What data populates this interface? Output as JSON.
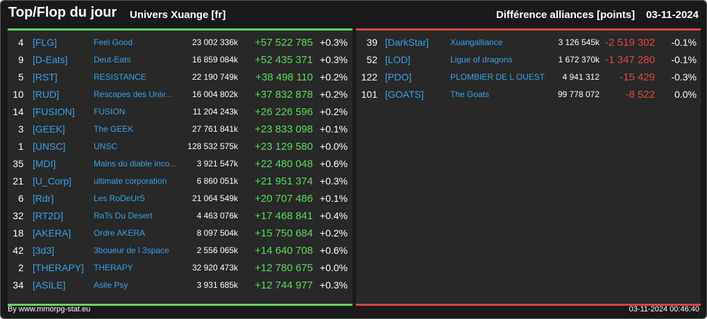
{
  "header": {
    "title": "Top/Flop du jour",
    "universe": "Univers Xuange [fr]",
    "subtitle": "Différence alliances [points]",
    "date": "03-11-2024"
  },
  "colors": {
    "positive": "#5bdc5b",
    "negative": "#e2473f",
    "tag": "#3aa2e6",
    "background": "#1a1a1a",
    "panel": "#282828"
  },
  "top": [
    {
      "rank": "4",
      "tag": "[FLG]",
      "name": "Feel Good",
      "points": "23 002 336k",
      "diff": "+57 522 785",
      "pct": "+0.3%"
    },
    {
      "rank": "9",
      "tag": "[D-Eats]",
      "name": "Deut-Eats",
      "points": "16 859 084k",
      "diff": "+52 435 371",
      "pct": "+0.3%"
    },
    {
      "rank": "5",
      "tag": "[RST]",
      "name": "RESISTANCE",
      "points": "22 190 749k",
      "diff": "+38 498 110",
      "pct": "+0.2%"
    },
    {
      "rank": "10",
      "tag": "[RUD]",
      "name": "Rescapes des Univ...",
      "points": "16 004 802k",
      "diff": "+37 832 878",
      "pct": "+0.2%"
    },
    {
      "rank": "14",
      "tag": "[FUSION]",
      "name": "FUSION",
      "points": "11 204 243k",
      "diff": "+26 226 596",
      "pct": "+0.2%"
    },
    {
      "rank": "3",
      "tag": "[GEEK]",
      "name": "The GEEK",
      "points": "27 761 841k",
      "diff": "+23 833 098",
      "pct": "+0.1%"
    },
    {
      "rank": "1",
      "tag": "[UNSC]",
      "name": "UNSC",
      "points": "128 532 575k",
      "diff": "+23 129 580",
      "pct": "+0.0%"
    },
    {
      "rank": "35",
      "tag": "[MDI]",
      "name": "Mains du diable inco...",
      "points": "3 921 547k",
      "diff": "+22 480 048",
      "pct": "+0.6%"
    },
    {
      "rank": "21",
      "tag": "[U_Corp]",
      "name": "ultimate corporation",
      "points": "6 860 051k",
      "diff": "+21 951 374",
      "pct": "+0.3%"
    },
    {
      "rank": "6",
      "tag": "[Rdr]",
      "name": "Les RoDeUrS",
      "points": "21 064 549k",
      "diff": "+20 707 486",
      "pct": "+0.1%"
    },
    {
      "rank": "32",
      "tag": "[RT2D]",
      "name": "RaTs Du Desert",
      "points": "4 463 076k",
      "diff": "+17 468 841",
      "pct": "+0.4%"
    },
    {
      "rank": "18",
      "tag": "[AKERA]",
      "name": "Ordre AKERA",
      "points": "8 097 504k",
      "diff": "+15 750 684",
      "pct": "+0.2%"
    },
    {
      "rank": "42",
      "tag": "[3d3]",
      "name": "3boueur de l 3space",
      "points": "2 556 065k",
      "diff": "+14 640 708",
      "pct": "+0.6%"
    },
    {
      "rank": "2",
      "tag": "[THERAPY]",
      "name": "THERAPY",
      "points": "32 920 473k",
      "diff": "+12 780 675",
      "pct": "+0.0%"
    },
    {
      "rank": "34",
      "tag": "[ASILE]",
      "name": "Asile Psy",
      "points": "3 931 685k",
      "diff": "+12 744 977",
      "pct": "+0.3%"
    }
  ],
  "flop": [
    {
      "rank": "39",
      "tag": "[DarkStar]",
      "name": "Xuangalliance",
      "points": "3 126 545k",
      "diff": "-2 519 302",
      "pct": "-0.1%"
    },
    {
      "rank": "52",
      "tag": "[LOD]",
      "name": "Ligue of dragons",
      "points": "1 672 370k",
      "diff": "-1 347 280",
      "pct": "-0.1%"
    },
    {
      "rank": "122",
      "tag": "[PDO]",
      "name": "PLOMBIER DE L OUEST",
      "points": "4 941 312",
      "diff": "-15 429",
      "pct": "-0.3%"
    },
    {
      "rank": "101",
      "tag": "[GOATS]",
      "name": "The Goats",
      "points": "99 778 072",
      "diff": "-8 522",
      "pct": "0.0%"
    }
  ],
  "footer": {
    "source": "By www.mmorpg-stat.eu",
    "timestamp": "03-11-2024 00:46:40"
  }
}
